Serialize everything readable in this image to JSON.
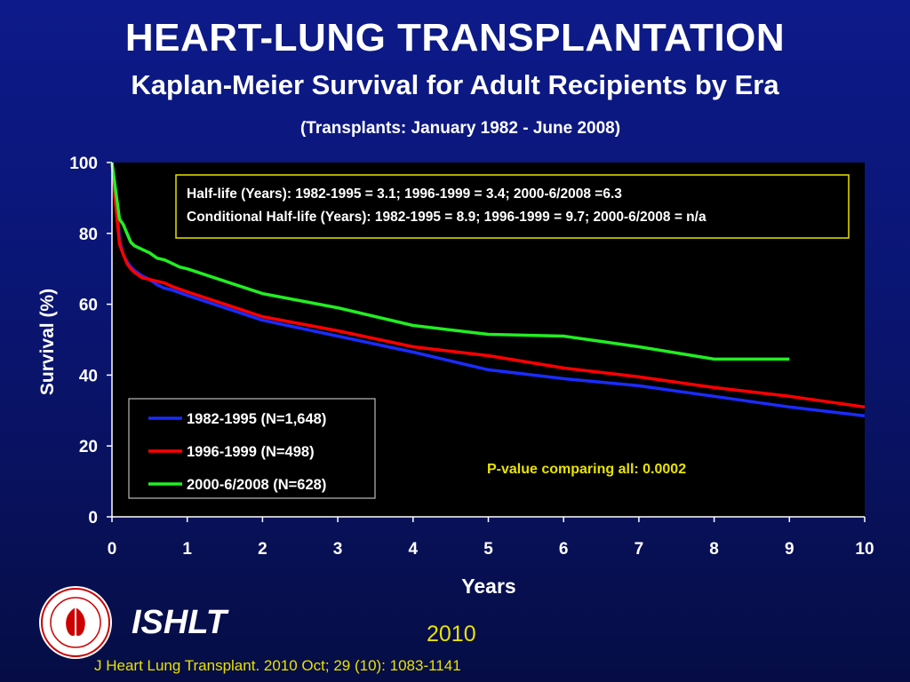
{
  "header": {
    "title": "HEART-LUNG TRANSPLANTATION",
    "subtitle": "Kaplan-Meier Survival for Adult Recipients by Era",
    "note": "(Transplants: January 1982 - June 2008)"
  },
  "footer": {
    "org": "ISHLT",
    "year": "2010",
    "citation": "J Heart Lung Transplant. 2010 Oct; 29 (10): 1083-1141"
  },
  "colors": {
    "background": "#0a1572",
    "plot_bg": "#000000",
    "accent_yellow": "#e8e200"
  },
  "chart_data": {
    "type": "line",
    "xlabel": "Years",
    "ylabel": "Survival (%)",
    "xlim": [
      0,
      10
    ],
    "ylim": [
      0,
      100
    ],
    "xticks": [
      0,
      1,
      2,
      3,
      4,
      5,
      6,
      7,
      8,
      9,
      10
    ],
    "yticks": [
      0,
      20,
      40,
      60,
      80,
      100
    ],
    "grid": false,
    "legend_position": "lower-left",
    "annotations": {
      "halflife_line1": "Half-life (Years): 1982-1995 = 3.1; 1996-1999 = 3.4; 2000-6/2008 =6.3",
      "halflife_line2": "Conditional Half-life (Years): 1982-1995 = 8.9; 1996-1999 = 9.7; 2000-6/2008 = n/a",
      "pvalue": "P-value comparing all:  0.0002"
    },
    "series": [
      {
        "name": "1982-1995 (N=1,648)",
        "color": "#1a2cff",
        "x": [
          0,
          0.05,
          0.1,
          0.15,
          0.2,
          0.25,
          0.3,
          0.4,
          0.5,
          0.6,
          0.7,
          0.8,
          1.0,
          1.5,
          2.0,
          3.0,
          4.0,
          5.0,
          6.0,
          7.0,
          8.0,
          9.0,
          10.0
        ],
        "y": [
          100,
          91,
          78,
          74,
          72,
          70.5,
          69.5,
          68,
          67,
          65.5,
          64.5,
          64,
          62.5,
          59,
          55.5,
          51,
          46.5,
          41.5,
          39,
          37,
          34,
          31,
          28.5
        ]
      },
      {
        "name": "1996-1999 (N=498)",
        "color": "#ff0000",
        "x": [
          0,
          0.05,
          0.1,
          0.15,
          0.2,
          0.25,
          0.3,
          0.4,
          0.5,
          0.6,
          0.7,
          0.8,
          1.0,
          1.5,
          2.0,
          3.0,
          4.0,
          5.0,
          6.0,
          7.0,
          8.0,
          9.0,
          10.0
        ],
        "y": [
          100,
          88,
          77,
          74,
          71.5,
          70,
          69,
          67.5,
          67,
          66.5,
          66,
          65,
          63.5,
          60,
          56.5,
          52.5,
          48,
          45.5,
          42,
          39.5,
          36.5,
          34,
          31
        ]
      },
      {
        "name": "2000-6/2008 (N=628)",
        "color": "#22ee22",
        "x": [
          0,
          0.05,
          0.1,
          0.15,
          0.2,
          0.25,
          0.3,
          0.4,
          0.5,
          0.6,
          0.7,
          0.8,
          0.9,
          1.0,
          1.5,
          2.0,
          3.0,
          4.0,
          5.0,
          6.0,
          7.0,
          8.0,
          9.0
        ],
        "y": [
          100,
          92,
          84,
          82.5,
          80,
          77.5,
          76.5,
          75.5,
          74.5,
          73,
          72.5,
          71.5,
          70.5,
          70,
          66.5,
          63,
          59,
          54,
          51.5,
          51,
          48,
          44.5,
          44.5
        ]
      }
    ]
  }
}
